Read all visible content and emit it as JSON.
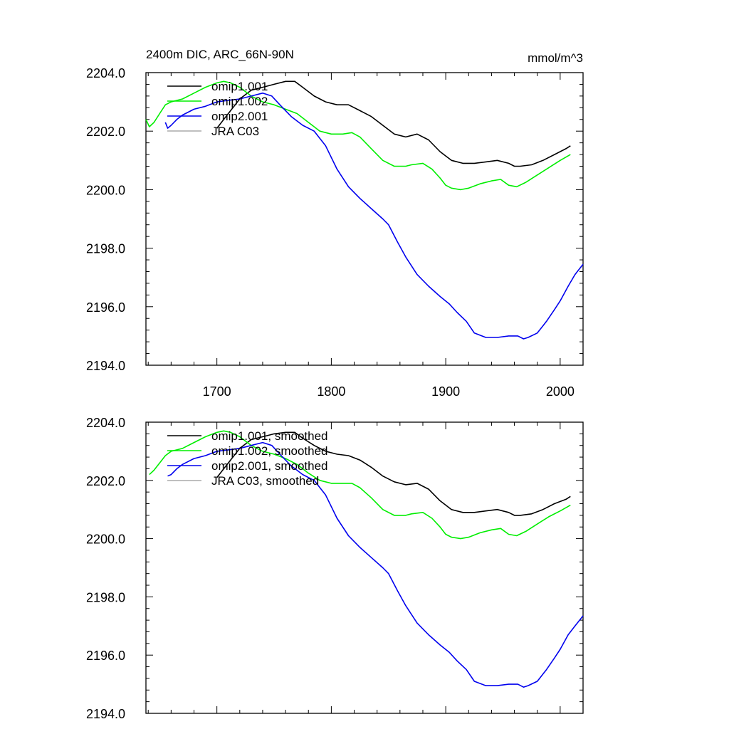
{
  "chart_data": [
    {
      "type": "line",
      "title": "2400m DIC, ARC_66N-90N",
      "units": "mmol/m^3",
      "xlim": [
        1638,
        2020
      ],
      "ylim": [
        2194.0,
        2204.0
      ],
      "xticks": [
        1700,
        1800,
        1900,
        2000
      ],
      "xtick_labels": [
        "1700",
        "1800",
        "1900",
        "2000"
      ],
      "yticks": [
        2194.0,
        2196.0,
        2198.0,
        2200.0,
        2202.0,
        2204.0
      ],
      "ytick_labels": [
        "2194.0",
        "2196.0",
        "2198.0",
        "2200.0",
        "2202.0",
        "2204.0"
      ],
      "legend": [
        "omip1.001",
        "omip1.002",
        "omip2.001",
        "JRA C03"
      ],
      "series": [
        {
          "name": "omip1.001",
          "color": "#000000",
          "x": [
            1700,
            1710,
            1720,
            1730,
            1740,
            1750,
            1760,
            1768,
            1775,
            1785,
            1795,
            1805,
            1815,
            1825,
            1835,
            1845,
            1855,
            1865,
            1875,
            1885,
            1895,
            1905,
            1915,
            1925,
            1935,
            1945,
            1955,
            1960,
            1965,
            1975,
            1985,
            1995,
            2005,
            2009
          ],
          "y": [
            2202.1,
            2202.6,
            2203.1,
            2203.4,
            2203.5,
            2203.6,
            2203.7,
            2203.7,
            2203.5,
            2203.2,
            2203.0,
            2202.9,
            2202.9,
            2202.7,
            2202.5,
            2202.2,
            2201.9,
            2201.8,
            2201.9,
            2201.7,
            2201.3,
            2201.0,
            2200.9,
            2200.9,
            2200.95,
            2201.0,
            2200.9,
            2200.8,
            2200.8,
            2200.85,
            2201.0,
            2201.2,
            2201.4,
            2201.5
          ]
        },
        {
          "name": "omip1.002",
          "color": "#00ee00",
          "x": [
            1638,
            1641,
            1645,
            1650,
            1655,
            1660,
            1670,
            1680,
            1690,
            1700,
            1706,
            1712,
            1720,
            1730,
            1740,
            1750,
            1760,
            1770,
            1780,
            1790,
            1800,
            1810,
            1818,
            1825,
            1835,
            1845,
            1855,
            1865,
            1870,
            1880,
            1888,
            1895,
            1900,
            1905,
            1913,
            1920,
            1930,
            1940,
            1948,
            1955,
            1962,
            1970,
            1980,
            1990,
            2000,
            2009
          ],
          "y": [
            2202.4,
            2202.15,
            2202.3,
            2202.6,
            2202.9,
            2203.0,
            2203.1,
            2203.3,
            2203.5,
            2203.65,
            2203.7,
            2203.65,
            2203.5,
            2203.2,
            2203.0,
            2202.9,
            2202.75,
            2202.6,
            2202.3,
            2202.0,
            2201.9,
            2201.9,
            2201.95,
            2201.8,
            2201.4,
            2201.0,
            2200.8,
            2200.8,
            2200.85,
            2200.9,
            2200.7,
            2200.4,
            2200.15,
            2200.05,
            2200.0,
            2200.05,
            2200.2,
            2200.3,
            2200.35,
            2200.15,
            2200.1,
            2200.25,
            2200.5,
            2200.75,
            2201.0,
            2201.2
          ]
        },
        {
          "name": "omip2.001",
          "color": "#0000ee",
          "x": [
            1655,
            1657,
            1660,
            1665,
            1670,
            1680,
            1690,
            1700,
            1710,
            1720,
            1730,
            1740,
            1748,
            1755,
            1765,
            1775,
            1785,
            1795,
            1805,
            1815,
            1825,
            1835,
            1845,
            1850,
            1858,
            1865,
            1875,
            1885,
            1895,
            1903,
            1910,
            1918,
            1925,
            1935,
            1945,
            1955,
            1963,
            1968,
            1972,
            1980,
            1988,
            1995,
            2000,
            2007,
            2013,
            2020
          ],
          "y": [
            2202.3,
            2202.1,
            2202.2,
            2202.4,
            2202.55,
            2202.75,
            2202.85,
            2203.0,
            2203.05,
            2203.1,
            2203.2,
            2203.3,
            2203.2,
            2202.9,
            2202.5,
            2202.2,
            2202.0,
            2201.5,
            2200.7,
            2200.1,
            2199.7,
            2199.35,
            2199.0,
            2198.8,
            2198.2,
            2197.7,
            2197.1,
            2196.7,
            2196.35,
            2196.1,
            2195.8,
            2195.5,
            2195.1,
            2194.95,
            2194.95,
            2195.0,
            2195.0,
            2194.9,
            2194.95,
            2195.1,
            2195.5,
            2195.9,
            2196.2,
            2196.7,
            2197.1,
            2197.45
          ]
        },
        {
          "name": "JRA C03",
          "color": "#aaaaaa",
          "x": [],
          "y": []
        }
      ]
    },
    {
      "type": "line",
      "title": "",
      "units": "",
      "xlim": [
        1638,
        2020
      ],
      "ylim": [
        2194.0,
        2204.0
      ],
      "xticks": [
        1700,
        1800,
        1900,
        2000
      ],
      "yticks": [
        2194.0,
        2196.0,
        2198.0,
        2200.0,
        2202.0,
        2204.0
      ],
      "ytick_labels": [
        "2194.0",
        "2196.0",
        "2198.0",
        "2200.0",
        "2202.0",
        "2204.0"
      ],
      "legend": [
        "omip1.001, smoothed",
        "omip1.002, smoothed",
        "omip2.001, smoothed",
        "JRA C03, smoothed"
      ],
      "series": [
        {
          "name": "omip1.001, smoothed",
          "color": "#000000",
          "x": [
            1700,
            1710,
            1720,
            1730,
            1740,
            1750,
            1760,
            1768,
            1775,
            1785,
            1795,
            1805,
            1815,
            1825,
            1835,
            1845,
            1855,
            1865,
            1875,
            1885,
            1895,
            1905,
            1915,
            1925,
            1935,
            1945,
            1955,
            1960,
            1965,
            1975,
            1985,
            1995,
            2005,
            2009
          ],
          "y": [
            2202.1,
            2202.6,
            2203.1,
            2203.4,
            2203.5,
            2203.6,
            2203.65,
            2203.65,
            2203.45,
            2203.2,
            2203.0,
            2202.9,
            2202.85,
            2202.7,
            2202.45,
            2202.15,
            2201.95,
            2201.85,
            2201.9,
            2201.7,
            2201.3,
            2201.0,
            2200.9,
            2200.9,
            2200.95,
            2201.0,
            2200.9,
            2200.8,
            2200.8,
            2200.85,
            2201.0,
            2201.2,
            2201.35,
            2201.45
          ]
        },
        {
          "name": "omip1.002, smoothed",
          "color": "#00ee00",
          "x": [
            1641,
            1645,
            1650,
            1655,
            1660,
            1670,
            1680,
            1690,
            1700,
            1706,
            1712,
            1720,
            1730,
            1740,
            1750,
            1760,
            1770,
            1780,
            1790,
            1800,
            1810,
            1818,
            1825,
            1835,
            1845,
            1855,
            1865,
            1870,
            1880,
            1888,
            1895,
            1900,
            1905,
            1913,
            1920,
            1930,
            1940,
            1948,
            1955,
            1962,
            1970,
            1980,
            1990,
            2000,
            2009
          ],
          "y": [
            2202.2,
            2202.35,
            2202.6,
            2202.85,
            2203.0,
            2203.1,
            2203.3,
            2203.5,
            2203.65,
            2203.7,
            2203.65,
            2203.5,
            2203.2,
            2203.0,
            2202.9,
            2202.75,
            2202.55,
            2202.25,
            2202.0,
            2201.9,
            2201.9,
            2201.9,
            2201.75,
            2201.4,
            2201.0,
            2200.8,
            2200.8,
            2200.85,
            2200.9,
            2200.7,
            2200.4,
            2200.15,
            2200.05,
            2200.0,
            2200.05,
            2200.2,
            2200.3,
            2200.35,
            2200.15,
            2200.1,
            2200.25,
            2200.5,
            2200.75,
            2200.95,
            2201.15
          ]
        },
        {
          "name": "omip2.001, smoothed",
          "color": "#0000ee",
          "x": [
            1657,
            1660,
            1665,
            1670,
            1680,
            1690,
            1700,
            1710,
            1720,
            1730,
            1740,
            1748,
            1755,
            1765,
            1775,
            1785,
            1795,
            1805,
            1815,
            1825,
            1835,
            1845,
            1850,
            1858,
            1865,
            1875,
            1885,
            1895,
            1903,
            1910,
            1918,
            1925,
            1935,
            1945,
            1955,
            1963,
            1968,
            1972,
            1980,
            1988,
            1995,
            2000,
            2007,
            2013,
            2020
          ],
          "y": [
            2202.15,
            2202.2,
            2202.4,
            2202.55,
            2202.75,
            2202.85,
            2203.0,
            2203.05,
            2203.1,
            2203.2,
            2203.3,
            2203.2,
            2202.9,
            2202.5,
            2202.2,
            2202.0,
            2201.5,
            2200.7,
            2200.1,
            2199.7,
            2199.35,
            2199.0,
            2198.8,
            2198.2,
            2197.7,
            2197.1,
            2196.7,
            2196.35,
            2196.1,
            2195.8,
            2195.5,
            2195.1,
            2194.95,
            2194.95,
            2195.0,
            2195.0,
            2194.9,
            2194.95,
            2195.1,
            2195.5,
            2195.9,
            2196.2,
            2196.7,
            2197.0,
            2197.35
          ]
        },
        {
          "name": "JRA C03, smoothed",
          "color": "#aaaaaa",
          "x": [],
          "y": []
        }
      ]
    }
  ]
}
